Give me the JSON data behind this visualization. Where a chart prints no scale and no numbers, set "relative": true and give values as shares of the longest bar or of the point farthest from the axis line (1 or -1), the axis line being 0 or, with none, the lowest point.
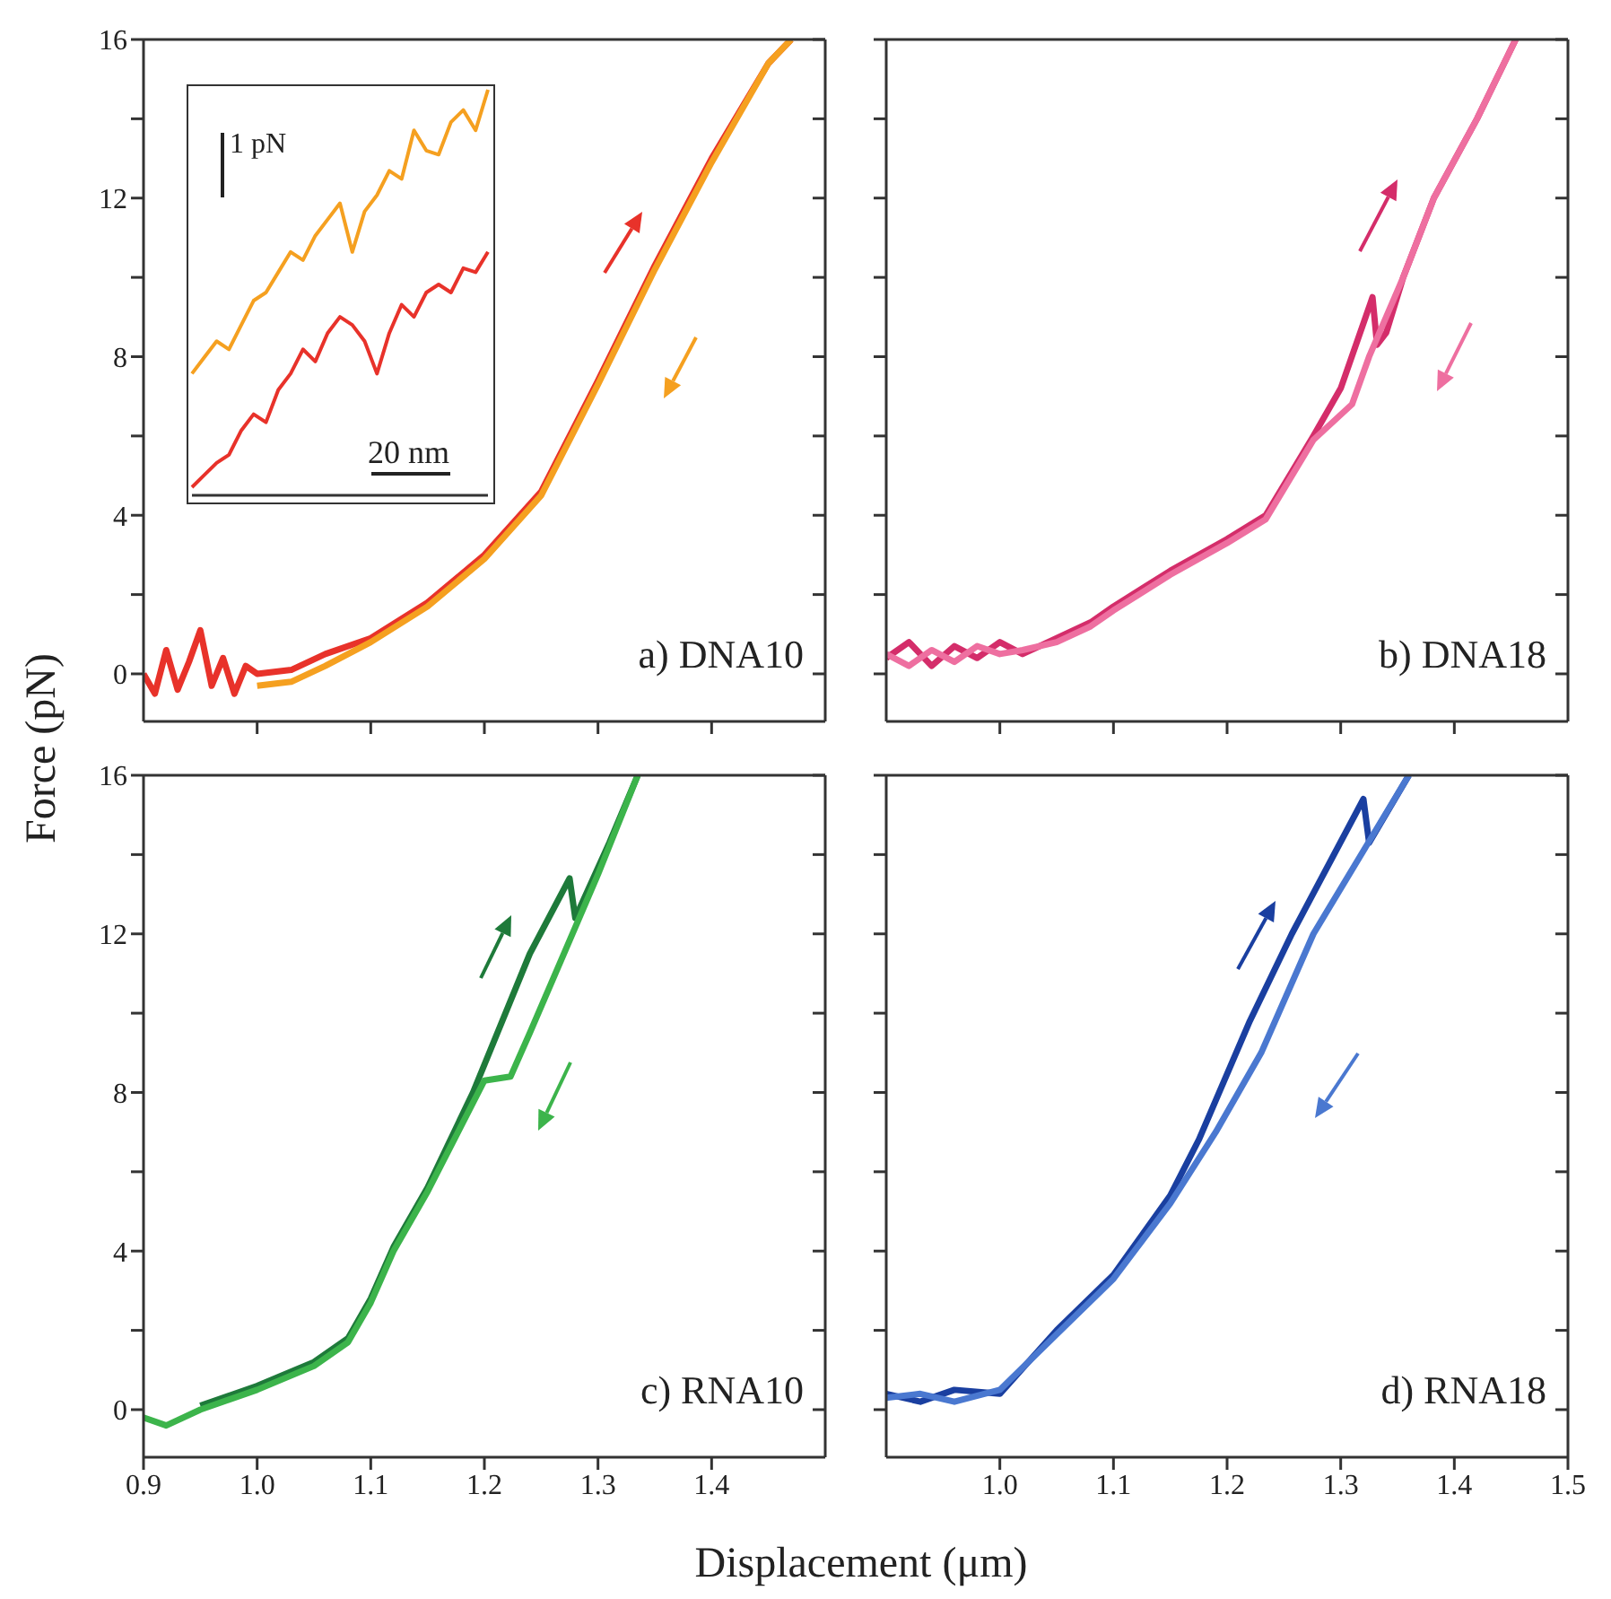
{
  "chart_data": [
    {
      "type": "line",
      "annotations": [
        "a) DNA10"
      ],
      "xlim": [
        0.9,
        1.5
      ],
      "ylim": [
        -1.2,
        16
      ],
      "xticks": [
        1.0,
        1.1,
        1.2,
        1.3,
        1.4
      ],
      "yticks": [
        0,
        {
          "value": 2,
          "label": null
        },
        4,
        {
          "value": 6,
          "label": null
        },
        8,
        {
          "value": 10,
          "label": null
        },
        12,
        {
          "value": 14,
          "label": null
        },
        16
      ],
      "tick_labels": "y",
      "series": [
        {
          "color": "#e8322a",
          "x": [
            0.9,
            0.91,
            0.92,
            0.93,
            0.94,
            0.95,
            0.96,
            0.97,
            0.98,
            0.99,
            1.0,
            1.03,
            1.06,
            1.1,
            1.15,
            1.2,
            1.25,
            1.3,
            1.35,
            1.4,
            1.45,
            1.47
          ],
          "values": [
            0,
            -0.5,
            0.6,
            -0.4,
            0.3,
            1.1,
            -0.3,
            0.4,
            -0.5,
            0.2,
            0,
            0.1,
            0.5,
            0.9,
            1.8,
            3,
            4.6,
            7.4,
            10.3,
            13,
            15.4,
            16
          ]
        },
        {
          "color": "#f5a020",
          "x": [
            1.47,
            1.45,
            1.4,
            1.35,
            1.3,
            1.25,
            1.2,
            1.15,
            1.1,
            1.06,
            1.03,
            1.0
          ],
          "values": [
            16,
            15.4,
            12.9,
            10.2,
            7.3,
            4.5,
            2.9,
            1.7,
            0.8,
            0.2,
            -0.2,
            -0.3
          ]
        }
      ]
    },
    {
      "type": "line",
      "relative": true,
      "annotations": [
        "1 pN",
        "20 nm"
      ],
      "categories": [
        null,
        null,
        null,
        null,
        null,
        null,
        null,
        null,
        null,
        null,
        null,
        null,
        null,
        null,
        null,
        null,
        null,
        null,
        null,
        null,
        null,
        null,
        null,
        null,
        null
      ],
      "series": [
        {
          "color": "#f5a020",
          "values": [
            0.3,
            0.34,
            0.38,
            0.36,
            0.42,
            0.48,
            0.5,
            0.55,
            0.6,
            0.58,
            0.64,
            0.68,
            0.72,
            0.6,
            0.7,
            0.74,
            0.8,
            0.78,
            0.9,
            0.85,
            0.84,
            0.92,
            0.95,
            0.9,
            1
          ]
        },
        {
          "color": "#e8322a",
          "values": [
            0.02,
            0.05,
            0.08,
            0.1,
            0.16,
            0.2,
            0.18,
            0.26,
            0.3,
            0.36,
            0.33,
            0.4,
            0.44,
            0.42,
            0.38,
            0.3,
            0.4,
            0.47,
            0.44,
            0.5,
            0.52,
            0.5,
            0.56,
            0.55,
            0.6
          ]
        }
      ]
    },
    {
      "type": "line",
      "annotations": [
        "b) DNA18"
      ],
      "xlim": [
        0.9,
        1.5
      ],
      "ylim": [
        -1.2,
        16
      ],
      "xticks": [
        1.0,
        1.1,
        1.2,
        1.3,
        1.4
      ],
      "yticks": [
        0,
        {
          "value": 2,
          "label": null
        },
        4,
        {
          "value": 6,
          "label": null
        },
        8,
        {
          "value": 10,
          "label": null
        },
        12,
        {
          "value": 14,
          "label": null
        },
        16
      ],
      "tick_labels": false,
      "series": [
        {
          "color": "#d42d6a",
          "x": [
            0.9,
            0.92,
            0.94,
            0.96,
            0.98,
            1.0,
            1.02,
            1.05,
            1.08,
            1.1,
            1.15,
            1.2,
            1.234,
            1.276,
            1.3,
            1.328,
            1.332,
            1.34,
            1.355,
            1.382,
            1.42,
            1.454
          ],
          "values": [
            0.4,
            0.8,
            0.2,
            0.7,
            0.4,
            0.8,
            0.5,
            0.9,
            1.3,
            1.7,
            2.6,
            3.4,
            4,
            6,
            7.2,
            9.5,
            8.3,
            8.6,
            10,
            12,
            14,
            16
          ]
        },
        {
          "color": "#ee6fa0",
          "x": [
            1.454,
            1.42,
            1.382,
            1.355,
            1.325,
            1.31,
            1.276,
            1.234,
            1.2,
            1.15,
            1.1,
            1.08,
            1.05,
            1.02,
            1.0,
            0.98,
            0.96,
            0.94,
            0.92,
            0.9
          ],
          "values": [
            16,
            14,
            12,
            10,
            8,
            6.8,
            5.9,
            3.9,
            3.3,
            2.5,
            1.6,
            1.2,
            0.8,
            0.6,
            0.5,
            0.7,
            0.3,
            0.6,
            0.2,
            0.5
          ]
        }
      ]
    },
    {
      "type": "line",
      "annotations": [
        "c) RNA10"
      ],
      "xlabel": "Displacement (μm)",
      "ylabel": "Force (pN)",
      "xlim": [
        0.9,
        1.5
      ],
      "ylim": [
        -1.2,
        16
      ],
      "xticks": [
        0.9,
        {
          "value": 1,
          "label": "1.0"
        },
        1.1,
        1.2,
        1.3,
        1.4
      ],
      "yticks": [
        0,
        {
          "value": 2,
          "label": null
        },
        4,
        {
          "value": 6,
          "label": null
        },
        8,
        {
          "value": 10,
          "label": null
        },
        12,
        {
          "value": 14,
          "label": null
        },
        16
      ],
      "series": [
        {
          "color": "#1e7a3a",
          "x": [
            0.95,
            1.0,
            1.05,
            1.08,
            1.1,
            1.12,
            1.15,
            1.19,
            1.24,
            1.275,
            1.28,
            1.31,
            1.335
          ],
          "values": [
            0.1,
            0.6,
            1.2,
            1.8,
            2.8,
            4.1,
            5.6,
            8,
            11.5,
            13.4,
            12.4,
            14.3,
            16
          ]
        },
        {
          "color": "#3cb44b",
          "x": [
            1.335,
            1.3,
            1.27,
            1.24,
            1.223,
            1.2,
            1.15,
            1.12,
            1.1,
            1.08,
            1.05,
            1.0,
            0.95,
            0.92,
            0.9
          ],
          "values": [
            16,
            13.5,
            11.5,
            9.5,
            8.4,
            8.3,
            5.5,
            4,
            2.7,
            1.7,
            1.1,
            0.5,
            0,
            -0.4,
            -0.2
          ]
        }
      ]
    },
    {
      "type": "line",
      "annotations": [
        "d) RNA18"
      ],
      "xlim": [
        0.9,
        1.5
      ],
      "ylim": [
        -1.2,
        16
      ],
      "xticks": [
        {
          "value": 1,
          "label": "1.0"
        },
        1.1,
        1.2,
        1.3,
        1.4,
        1.5
      ],
      "yticks": [
        0,
        {
          "value": 2,
          "label": null
        },
        4,
        {
          "value": 6,
          "label": null
        },
        8,
        {
          "value": 10,
          "label": null
        },
        12,
        {
          "value": 14,
          "label": null
        },
        16
      ],
      "tick_labels": "x",
      "series": [
        {
          "color": "#1a3fa0",
          "x": [
            0.9,
            0.93,
            0.96,
            1.0,
            1.05,
            1.1,
            1.15,
            1.175,
            1.22,
            1.257,
            1.32,
            1.325,
            1.36
          ],
          "values": [
            0.4,
            0.2,
            0.5,
            0.4,
            2,
            3.4,
            5.4,
            6.8,
            9.8,
            12,
            15.4,
            14.3,
            16
          ]
        },
        {
          "color": "#4a78d0",
          "x": [
            1.36,
            1.276,
            1.23,
            1.19,
            1.15,
            1.1,
            1.05,
            1.0,
            0.96,
            0.93,
            0.9
          ],
          "values": [
            16,
            12,
            9,
            7,
            5.2,
            3.3,
            1.9,
            0.5,
            0.2,
            0.4,
            0.3
          ]
        }
      ]
    }
  ]
}
